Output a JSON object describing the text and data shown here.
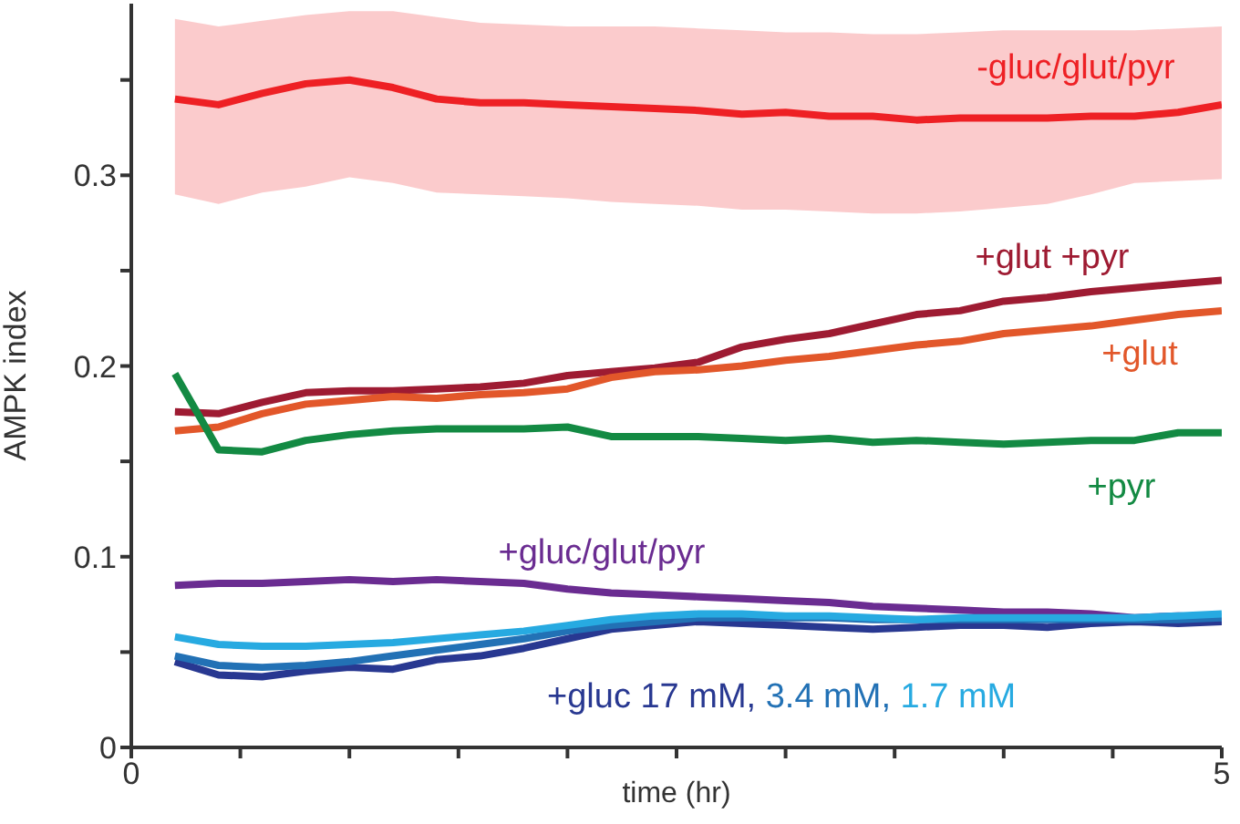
{
  "chart_data": {
    "type": "line",
    "xlabel": "time (hr)",
    "ylabel": "AMPK index",
    "x": [
      0.2,
      0.4,
      0.6,
      0.8,
      1.0,
      1.2,
      1.4,
      1.6,
      1.8,
      2.0,
      2.2,
      2.4,
      2.6,
      2.8,
      3.0,
      3.2,
      3.4,
      3.6,
      3.8,
      4.0,
      4.2,
      4.4,
      4.6,
      4.8,
      5.0
    ],
    "xlim": [
      0,
      5
    ],
    "xticks": [
      0,
      {
        "value": 0.5,
        "label": null
      },
      {
        "value": 1,
        "label": null
      },
      {
        "value": 1.5,
        "label": null
      },
      {
        "value": 2,
        "label": null
      },
      {
        "value": 2.5,
        "label": null
      },
      {
        "value": 3,
        "label": null
      },
      {
        "value": 3.5,
        "label": null
      },
      {
        "value": 4,
        "label": null
      },
      {
        "value": 4.5,
        "label": null
      },
      5
    ],
    "ylim": [
      0,
      0.39
    ],
    "yticks": [
      0,
      {
        "value": 0.05,
        "label": null
      },
      0.1,
      {
        "value": 0.15,
        "label": null
      },
      0.2,
      {
        "value": 0.25,
        "label": null
      },
      0.3,
      {
        "value": 0.35,
        "label": null
      }
    ],
    "series": [
      {
        "name": "-gluc/glut/pyr",
        "color": "#ee2024",
        "values": [
          0.34,
          0.337,
          0.343,
          0.348,
          0.35,
          0.346,
          0.34,
          0.338,
          0.338,
          0.337,
          0.336,
          0.335,
          0.334,
          0.332,
          0.333,
          0.331,
          0.331,
          0.329,
          0.33,
          0.33,
          0.33,
          0.331,
          0.331,
          0.333,
          0.337
        ],
        "lower": [
          0.29,
          0.285,
          0.291,
          0.294,
          0.299,
          0.296,
          0.291,
          0.29,
          0.289,
          0.288,
          0.286,
          0.285,
          0.284,
          0.282,
          0.282,
          0.281,
          0.28,
          0.28,
          0.281,
          0.283,
          0.285,
          0.29,
          0.296,
          0.297,
          0.298
        ],
        "upper": [
          0.382,
          0.378,
          0.381,
          0.384,
          0.386,
          0.386,
          0.383,
          0.38,
          0.379,
          0.378,
          0.378,
          0.378,
          0.377,
          0.376,
          0.375,
          0.375,
          0.374,
          0.374,
          0.375,
          0.376,
          0.376,
          0.376,
          0.376,
          0.377,
          0.378
        ]
      },
      {
        "name": "+glut +pyr",
        "color": "#9e1b32",
        "values": [
          0.176,
          0.175,
          0.181,
          0.186,
          0.187,
          0.187,
          0.188,
          0.189,
          0.191,
          0.195,
          0.197,
          0.199,
          0.202,
          0.21,
          0.214,
          0.217,
          0.222,
          0.227,
          0.229,
          0.234,
          0.236,
          0.239,
          0.241,
          0.243,
          0.245
        ]
      },
      {
        "name": "+glut",
        "color": "#e2572a",
        "values": [
          0.166,
          0.168,
          0.175,
          0.18,
          0.182,
          0.184,
          0.183,
          0.185,
          0.186,
          0.188,
          0.194,
          0.197,
          0.198,
          0.2,
          0.203,
          0.205,
          0.208,
          0.211,
          0.213,
          0.217,
          0.219,
          0.221,
          0.224,
          0.227,
          0.229
        ]
      },
      {
        "name": "+pyr",
        "color": "#138a43",
        "values": [
          0.196,
          0.156,
          0.155,
          0.161,
          0.164,
          0.166,
          0.167,
          0.167,
          0.167,
          0.168,
          0.163,
          0.163,
          0.163,
          0.162,
          0.161,
          0.162,
          0.16,
          0.161,
          0.16,
          0.159,
          0.16,
          0.161,
          0.161,
          0.165,
          0.165
        ]
      },
      {
        "name": "+gluc/glut/pyr",
        "color": "#6a2c91",
        "values": [
          0.085,
          0.086,
          0.086,
          0.087,
          0.088,
          0.087,
          0.088,
          0.087,
          0.086,
          0.083,
          0.081,
          0.08,
          0.079,
          0.078,
          0.077,
          0.076,
          0.074,
          0.073,
          0.072,
          0.071,
          0.071,
          0.07,
          0.068,
          0.069,
          0.068
        ]
      },
      {
        "name": "+gluc 17 mM,",
        "color": "#283891",
        "values": [
          0.045,
          0.038,
          0.037,
          0.04,
          0.042,
          0.041,
          0.046,
          0.048,
          0.052,
          0.057,
          0.062,
          0.064,
          0.066,
          0.065,
          0.064,
          0.063,
          0.062,
          0.063,
          0.064,
          0.064,
          0.063,
          0.065,
          0.066,
          0.065,
          0.066
        ]
      },
      {
        "name": "3.4 mM,",
        "color": "#2271b5",
        "values": [
          0.048,
          0.043,
          0.042,
          0.043,
          0.045,
          0.048,
          0.051,
          0.054,
          0.057,
          0.061,
          0.064,
          0.066,
          0.068,
          0.068,
          0.068,
          0.068,
          0.067,
          0.067,
          0.067,
          0.067,
          0.067,
          0.067,
          0.067,
          0.067,
          0.068
        ]
      },
      {
        "name": "1.7 mM",
        "color": "#27aae1",
        "values": [
          0.058,
          0.054,
          0.053,
          0.053,
          0.054,
          0.055,
          0.057,
          0.059,
          0.061,
          0.064,
          0.067,
          0.069,
          0.07,
          0.07,
          0.069,
          0.069,
          0.068,
          0.067,
          0.068,
          0.068,
          0.068,
          0.068,
          0.068,
          0.069,
          0.07
        ]
      }
    ]
  }
}
